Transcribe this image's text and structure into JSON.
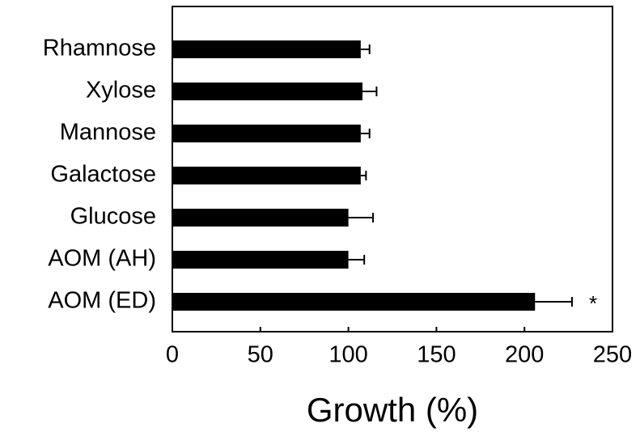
{
  "chart_data": {
    "type": "hbar",
    "x_label": "Growth (%)",
    "categories": [
      "Rhamnose",
      "Xylose",
      "Mannose",
      "Galactose",
      "Glucose",
      "AOM (AH)",
      "AOM (ED)"
    ],
    "values": [
      107,
      108,
      107,
      107,
      100,
      100,
      206
    ],
    "errors": [
      5,
      8,
      5,
      3,
      14,
      9,
      21
    ],
    "value_annotations": [
      null,
      null,
      null,
      null,
      null,
      null,
      "*"
    ],
    "color": "#000000",
    "xlim": [
      0,
      250
    ],
    "xticks": [
      0,
      50,
      100,
      150,
      200,
      250
    ]
  }
}
